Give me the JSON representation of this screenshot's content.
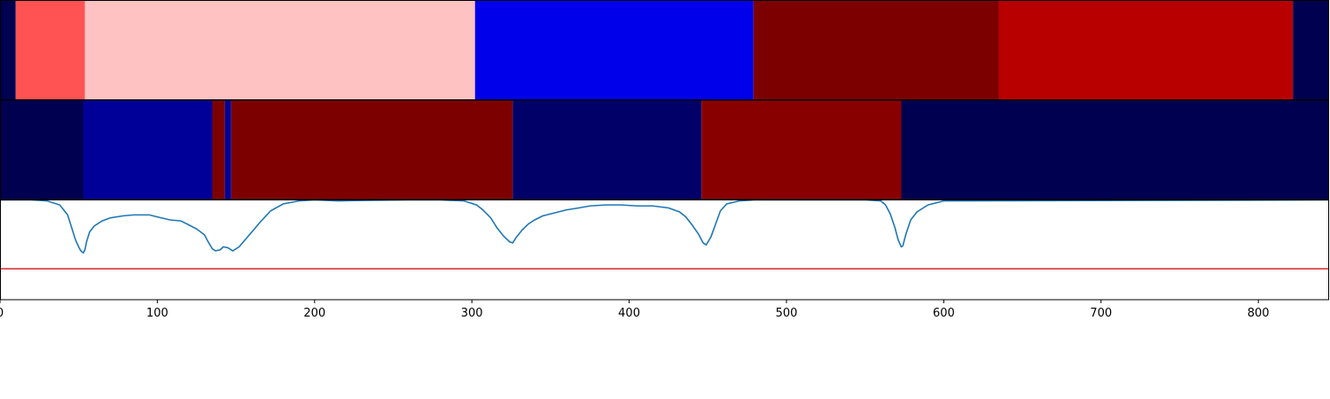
{
  "chart_data": {
    "type": "heatmap",
    "x_axis": {
      "xlim": [
        0,
        845
      ],
      "ticks": [
        0,
        100,
        200,
        300,
        400,
        500,
        600,
        700,
        800
      ],
      "tick_labels": [
        "0",
        "100",
        "200",
        "300",
        "400",
        "500",
        "600",
        "700",
        "800"
      ]
    },
    "tracks": [
      {
        "name": "",
        "segments": [
          {
            "start": 0,
            "end": 10,
            "color": "#000050"
          },
          {
            "start": 10,
            "end": 54,
            "color": "#ff5252"
          },
          {
            "start": 54,
            "end": 302,
            "color": "#ffc2c2"
          },
          {
            "start": 302,
            "end": 479,
            "color": "#0000ea"
          },
          {
            "start": 479,
            "end": 635,
            "color": "#7d0000"
          },
          {
            "start": 635,
            "end": 822,
            "color": "#b80000"
          },
          {
            "start": 822,
            "end": 845,
            "color": "#000050"
          }
        ]
      },
      {
        "name": "",
        "segments": [
          {
            "start": 0,
            "end": 53,
            "color": "#000050"
          },
          {
            "start": 53,
            "end": 135,
            "color": "#000098"
          },
          {
            "start": 135,
            "end": 143,
            "color": "#7d0000"
          },
          {
            "start": 143,
            "end": 147,
            "color": "#000098"
          },
          {
            "start": 147,
            "end": 326,
            "color": "#7d0000"
          },
          {
            "start": 326,
            "end": 446,
            "color": "#000068"
          },
          {
            "start": 446,
            "end": 573,
            "color": "#880000"
          },
          {
            "start": 573,
            "end": 845,
            "color": "#000050"
          }
        ]
      }
    ],
    "line_panel": {
      "ylim": [
        0,
        1
      ],
      "line_color": "#1f77b4",
      "threshold": {
        "y": 0.31,
        "color": "#d62728"
      },
      "series": [
        {
          "name": "",
          "x": [
            0,
            20,
            30,
            38,
            43,
            46,
            48,
            50,
            51,
            52,
            53,
            54,
            55,
            57,
            60,
            65,
            70,
            78,
            85,
            95,
            100,
            108,
            115,
            120,
            125,
            130,
            132,
            135,
            137,
            140,
            142,
            145,
            148,
            152,
            158,
            165,
            172,
            180,
            190,
            200,
            215,
            230,
            260,
            280,
            295,
            303,
            307,
            312,
            316,
            320,
            324,
            326,
            328,
            332,
            336,
            340,
            345,
            350,
            355,
            360,
            368,
            375,
            385,
            395,
            405,
            415,
            425,
            432,
            436,
            440,
            444,
            447,
            449,
            452,
            455,
            458,
            462,
            470,
            480,
            495,
            520,
            550,
            560,
            563,
            566,
            569,
            571,
            573,
            574,
            576,
            579,
            583,
            590,
            600,
            845
          ],
          "y": [
            1.0,
            1.0,
            0.99,
            0.95,
            0.85,
            0.7,
            0.6,
            0.53,
            0.5,
            0.48,
            0.47,
            0.5,
            0.58,
            0.68,
            0.74,
            0.79,
            0.82,
            0.84,
            0.85,
            0.85,
            0.83,
            0.8,
            0.79,
            0.75,
            0.71,
            0.65,
            0.59,
            0.51,
            0.49,
            0.5,
            0.53,
            0.52,
            0.49,
            0.53,
            0.64,
            0.77,
            0.89,
            0.96,
            0.99,
            1.0,
            0.99,
            0.995,
            1.0,
            1.0,
            0.99,
            0.95,
            0.9,
            0.82,
            0.72,
            0.64,
            0.58,
            0.57,
            0.62,
            0.7,
            0.76,
            0.8,
            0.84,
            0.86,
            0.88,
            0.9,
            0.92,
            0.94,
            0.95,
            0.95,
            0.94,
            0.94,
            0.92,
            0.88,
            0.83,
            0.75,
            0.66,
            0.57,
            0.55,
            0.63,
            0.76,
            0.89,
            0.96,
            0.99,
            1.0,
            1.0,
            1.0,
            1.0,
            0.99,
            0.95,
            0.86,
            0.72,
            0.6,
            0.53,
            0.54,
            0.66,
            0.8,
            0.88,
            0.95,
            0.99,
            1.0
          ]
        }
      ]
    }
  }
}
